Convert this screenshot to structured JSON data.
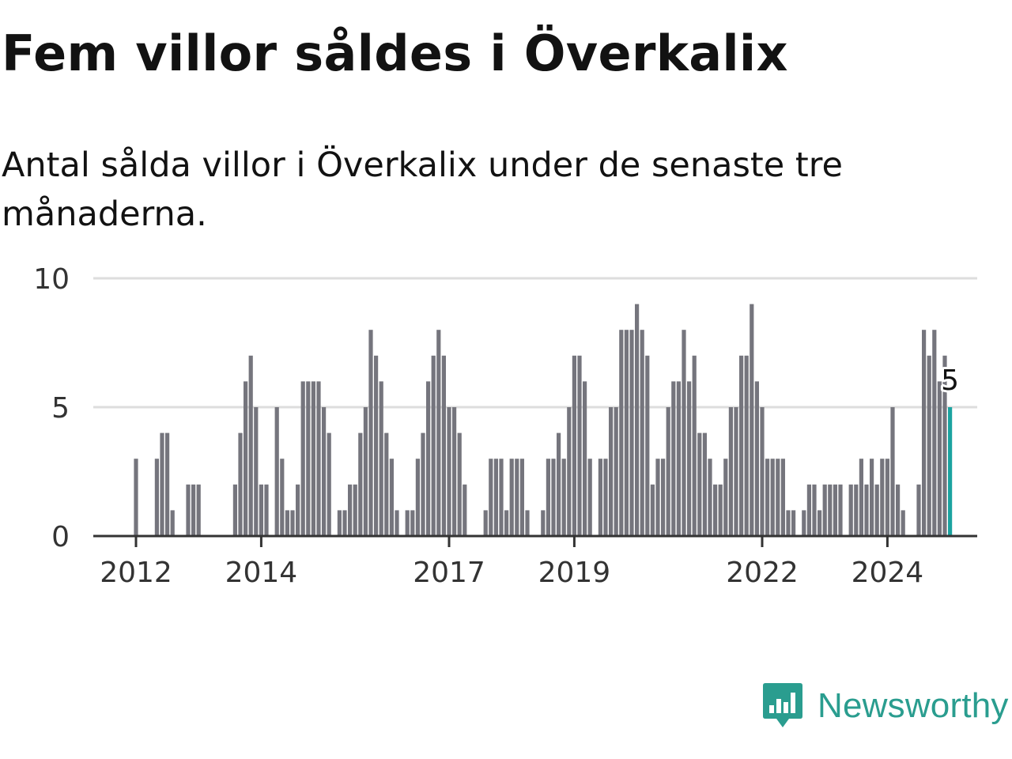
{
  "title": "Fem villor såldes i Överkalix",
  "subtitle": "Antal sålda villor i Överkalix under de senaste tre månaderna.",
  "brand": "Newsworthy",
  "colors": {
    "bar": "#75757d",
    "highlight": "#1ba3a0",
    "grid": "#dddddd",
    "axis": "#333333",
    "brand": "#2a9d8f"
  },
  "chart_data": {
    "type": "bar",
    "title": "Fem villor såldes i Överkalix",
    "subtitle": "Antal sålda villor i Överkalix under de senaste tre månaderna.",
    "xlabel": "",
    "ylabel": "",
    "ylim": [
      0,
      10
    ],
    "yticks": [
      0,
      5,
      10
    ],
    "xticks": [
      {
        "label": "2012",
        "index": 0
      },
      {
        "label": "2014",
        "index": 24
      },
      {
        "label": "2017",
        "index": 60
      },
      {
        "label": "2019",
        "index": 84
      },
      {
        "label": "2022",
        "index": 120
      },
      {
        "label": "2024",
        "index": 144
      }
    ],
    "grid": true,
    "start": "2012-01",
    "frequency": "monthly",
    "values": [
      3,
      0,
      0,
      0,
      3,
      4,
      4,
      1,
      0,
      0,
      2,
      2,
      2,
      0,
      0,
      0,
      0,
      0,
      0,
      2,
      4,
      6,
      7,
      5,
      2,
      2,
      0,
      5,
      3,
      1,
      1,
      2,
      6,
      6,
      6,
      6,
      5,
      4,
      0,
      1,
      1,
      2,
      2,
      4,
      5,
      8,
      7,
      6,
      4,
      3,
      1,
      0,
      1,
      1,
      3,
      4,
      6,
      7,
      8,
      7,
      5,
      5,
      4,
      2,
      0,
      0,
      0,
      1,
      3,
      3,
      3,
      1,
      3,
      3,
      3,
      1,
      0,
      0,
      1,
      3,
      3,
      4,
      3,
      5,
      7,
      7,
      6,
      3,
      0,
      3,
      3,
      5,
      5,
      8,
      8,
      8,
      9,
      8,
      7,
      2,
      3,
      3,
      5,
      6,
      6,
      8,
      6,
      7,
      4,
      4,
      3,
      2,
      2,
      3,
      5,
      5,
      7,
      7,
      9,
      6,
      5,
      3,
      3,
      3,
      3,
      1,
      1,
      0,
      1,
      2,
      2,
      1,
      2,
      2,
      2,
      2,
      0,
      2,
      2,
      3,
      2,
      3,
      2,
      3,
      3,
      5,
      2,
      1,
      0,
      0,
      2,
      8,
      7,
      8,
      6,
      7,
      5
    ],
    "highlight_label": "5"
  }
}
